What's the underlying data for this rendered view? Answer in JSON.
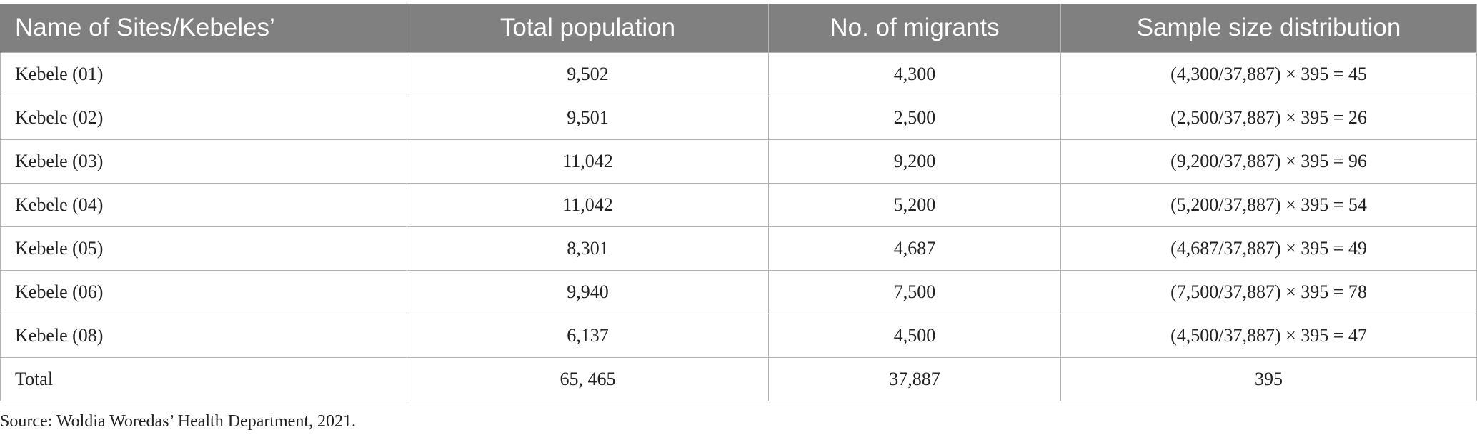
{
  "table": {
    "headers": [
      "Name of Sites/Kebeles’",
      "Total population",
      "No. of migrants",
      "Sample size distribution"
    ],
    "rows": [
      [
        "Kebele (01)",
        "9,502",
        "4,300",
        "(4,300/37,887) × 395 = 45"
      ],
      [
        "Kebele (02)",
        "9,501",
        "2,500",
        "(2,500/37,887) × 395 = 26"
      ],
      [
        "Kebele (03)",
        "11,042",
        "9,200",
        "(9,200/37,887) × 395 = 96"
      ],
      [
        "Kebele (04)",
        "11,042",
        "5,200",
        "(5,200/37,887) × 395 = 54"
      ],
      [
        "Kebele (05)",
        "8,301",
        "4,687",
        "(4,687/37,887) × 395 = 49"
      ],
      [
        "Kebele (06)",
        "9,940",
        "7,500",
        "(7,500/37,887) × 395 = 78"
      ],
      [
        "Kebele (08)",
        "6,137",
        "4,500",
        "(4,500/37,887) × 395 = 47"
      ],
      [
        "Total",
        "65, 465",
        "37,887",
        "395"
      ]
    ]
  },
  "source_note": "Source: Woldia Woredas’ Health Department, 2021.",
  "colors": {
    "header_bg": "#808080",
    "header_text": "#ffffff",
    "grid": "#b3b3b3"
  }
}
